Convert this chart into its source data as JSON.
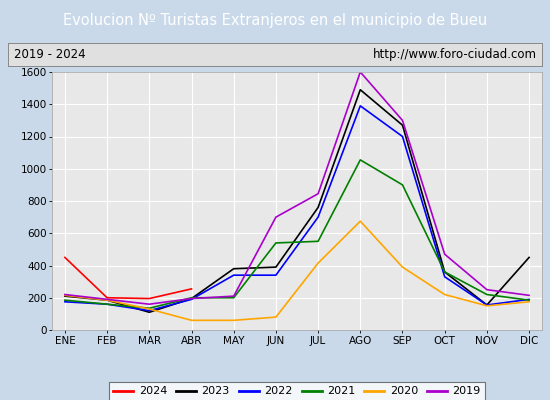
{
  "title": "Evolucion Nº Turistas Extranjeros en el municipio de Bueu",
  "subtitle_left": "2019 - 2024",
  "subtitle_right": "http://www.foro-ciudad.com",
  "title_bg": "#4472c4",
  "outer_bg": "#c9d9ea",
  "plot_bg": "#e8e8e8",
  "subtitle_bg": "#e0e0e0",
  "months": [
    "ENE",
    "FEB",
    "MAR",
    "ABR",
    "MAY",
    "JUN",
    "JUL",
    "AGO",
    "SEP",
    "OCT",
    "NOV",
    "DIC"
  ],
  "ylim": [
    0,
    1600
  ],
  "yticks": [
    0,
    200,
    400,
    600,
    800,
    1000,
    1200,
    1400,
    1600
  ],
  "series": {
    "2024": {
      "color": "red",
      "data": [
        450,
        200,
        195,
        255,
        null,
        null,
        null,
        null,
        null,
        null,
        null,
        null
      ]
    },
    "2023": {
      "color": "black",
      "data": [
        210,
        185,
        110,
        195,
        380,
        390,
        760,
        1490,
        1270,
        360,
        155,
        450
      ]
    },
    "2022": {
      "color": "blue",
      "data": [
        175,
        160,
        120,
        190,
        340,
        340,
        700,
        1390,
        1200,
        330,
        155,
        190
      ]
    },
    "2021": {
      "color": "green",
      "data": [
        185,
        160,
        135,
        200,
        200,
        540,
        550,
        1055,
        900,
        360,
        220,
        185
      ]
    },
    "2020": {
      "color": "orange",
      "data": [
        215,
        185,
        130,
        60,
        60,
        80,
        415,
        675,
        390,
        220,
        150,
        175
      ]
    },
    "2019": {
      "color": "#aa00cc",
      "data": [
        220,
        190,
        160,
        195,
        210,
        700,
        845,
        1600,
        1300,
        470,
        250,
        215
      ]
    }
  },
  "legend_order": [
    "2024",
    "2023",
    "2022",
    "2021",
    "2020",
    "2019"
  ],
  "grid_color": "#ffffff",
  "tick_fontsize": 7.5
}
